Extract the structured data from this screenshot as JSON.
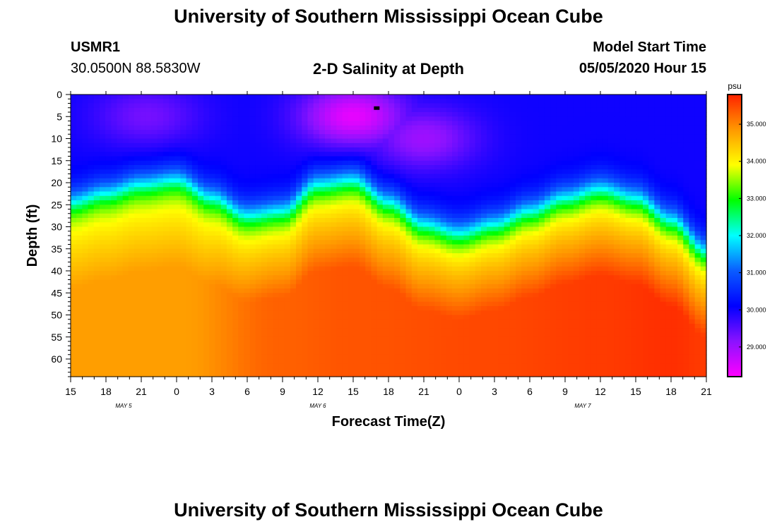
{
  "page": {
    "title_top": "University of Southern Mississippi Ocean Cube",
    "title_bottom": "University of Southern Mississippi Ocean Cube",
    "station_id": "USMR1",
    "station_coords": "30.0500N 88.5830W",
    "plot_title": "2-D Salinity at Depth",
    "model_start_label": "Model Start Time",
    "model_start_value": "05/05/2020 Hour 15"
  },
  "colors": {
    "scale": [
      "#ff00ff",
      "#8b12ff",
      "#0000ff",
      "#0a5cff",
      "#00ffff",
      "#00ff00",
      "#ffff00",
      "#ff9900",
      "#ff2200"
    ]
  },
  "chart_data": {
    "type": "heatmap",
    "title": "2-D Salinity at Depth",
    "xlabel": "Forecast Time(Z)",
    "ylabel": "Depth (ft)",
    "x_ticks": [
      "15",
      "18",
      "21",
      "0",
      "3",
      "6",
      "9",
      "12",
      "15",
      "18",
      "21",
      "0",
      "3",
      "6",
      "9",
      "12",
      "15",
      "18",
      "21"
    ],
    "x_range_hours": [
      0,
      54
    ],
    "date_labels": [
      {
        "text": "MAY 5",
        "hour": 4.5
      },
      {
        "text": "MAY 6",
        "hour": 21
      },
      {
        "text": "MAY 7",
        "hour": 43.5
      }
    ],
    "y_ticks": [
      0,
      5,
      10,
      15,
      20,
      25,
      30,
      35,
      40,
      45,
      50,
      55,
      60
    ],
    "y_range": [
      0,
      64
    ],
    "y_inverted": true,
    "colorbar": {
      "unit": "psu",
      "range": [
        28.2,
        35.8
      ],
      "ticks": [
        29.0,
        30.0,
        31.0,
        32.0,
        33.0,
        34.0,
        35.0
      ],
      "tick_labels": [
        "29.000",
        "30.000",
        "31.000",
        "32.000",
        "33.000",
        "34.000",
        "35.000"
      ]
    },
    "halocline_depth_ft": {
      "hours": [
        0,
        3,
        6,
        9,
        12,
        15,
        18,
        21,
        24,
        27,
        30,
        33,
        36,
        39,
        42,
        45,
        48,
        51,
        54
      ],
      "depth": [
        24,
        22,
        20,
        19,
        23,
        27,
        26,
        20,
        19,
        24,
        29,
        31,
        29,
        26,
        23,
        21,
        23,
        28,
        35
      ]
    },
    "surface_fresh_cores": [
      {
        "hour": 6.5,
        "depth": 5,
        "salinity": 29.3
      },
      {
        "hour": 24,
        "depth": 5,
        "salinity": 28.4
      },
      {
        "hour": 30,
        "depth": 10,
        "salinity": 29.0
      }
    ],
    "bottom_salinity": {
      "hours": [
        0,
        9,
        18,
        24,
        36,
        45,
        51,
        54
      ],
      "values": [
        34.8,
        34.8,
        35.3,
        35.4,
        35.5,
        35.6,
        35.7,
        35.6
      ]
    },
    "marker": {
      "hour": 26,
      "depth": 3
    }
  }
}
